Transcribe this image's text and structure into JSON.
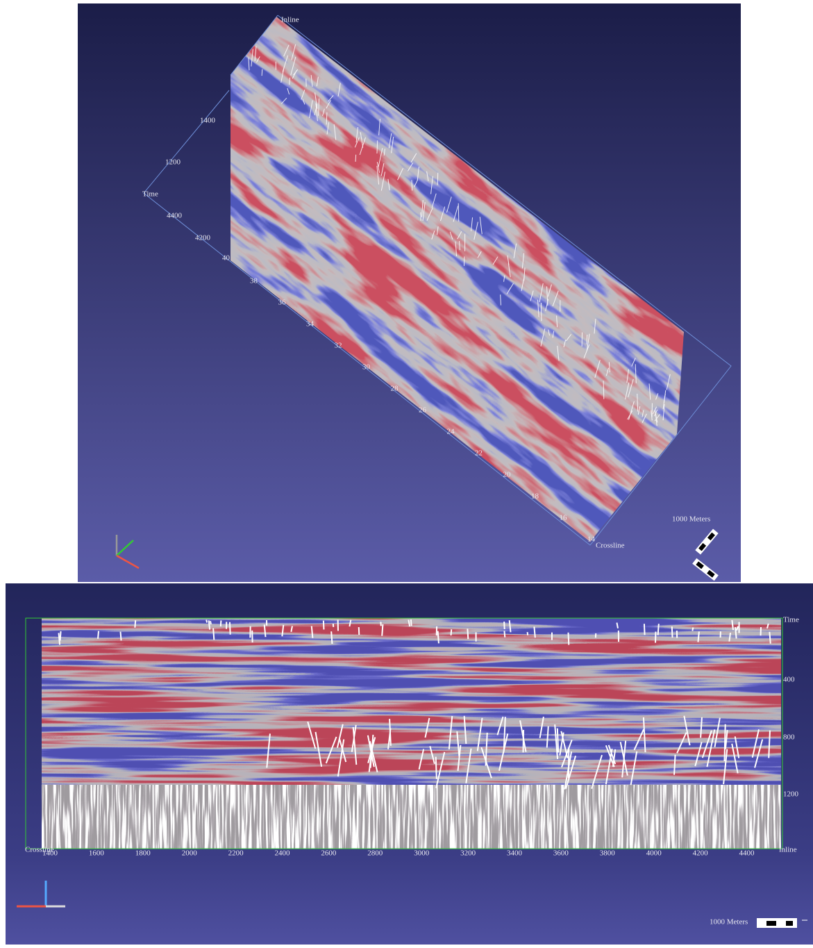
{
  "top_view": {
    "inline_label": "Inline",
    "time_label": "Time",
    "time_ticks": [
      1400,
      1200
    ],
    "inline_ticks": [
      4400,
      4200,
      40
    ],
    "crossline_ticks": [
      38,
      36,
      34,
      32,
      30,
      28,
      26,
      24,
      22,
      20,
      18,
      16,
      14
    ],
    "crossline_label": "Crossline",
    "scale_label": "1000 Meters"
  },
  "bottom_view": {
    "time_label": "Time",
    "time_ticks": [
      400,
      800,
      1200
    ],
    "crossline_label": "Crossline",
    "crossline_ticks": [
      1400,
      1600,
      1800,
      2000,
      2200,
      2400,
      2600,
      2800,
      3000,
      3200,
      3400,
      3600,
      3800,
      4000,
      4200,
      4400
    ],
    "inline_label": "Inline",
    "scale_label": "1000 Meters"
  }
}
